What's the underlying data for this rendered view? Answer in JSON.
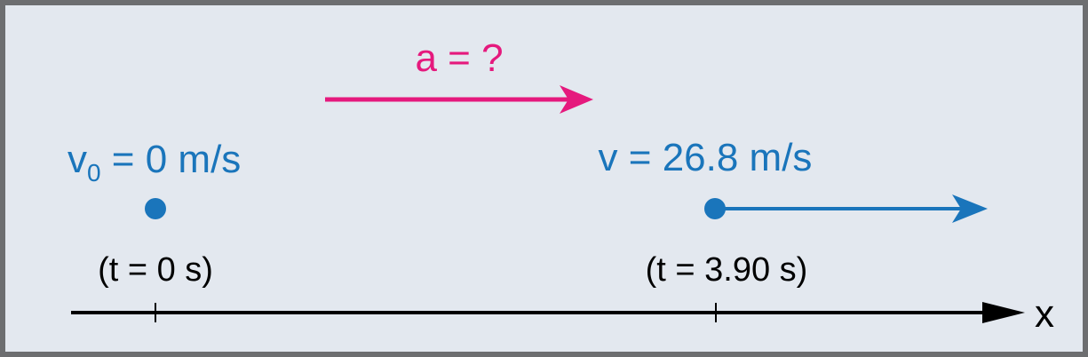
{
  "colors": {
    "background": "#e3e8ef",
    "border": "#6d6e70",
    "velocity": "#1a75bb",
    "acceleration": "#e5197d",
    "axis": "#000000"
  },
  "labels": {
    "acceleration": "a = ?",
    "initial_velocity_symbol": "v",
    "initial_velocity_subscript": "0",
    "initial_velocity_value": " = 0 m/s",
    "final_velocity": "v = 26.8 m/s",
    "time_initial": "(t = 0 s)",
    "time_final": "(t = 3.90 s)",
    "axis_label": "x"
  }
}
